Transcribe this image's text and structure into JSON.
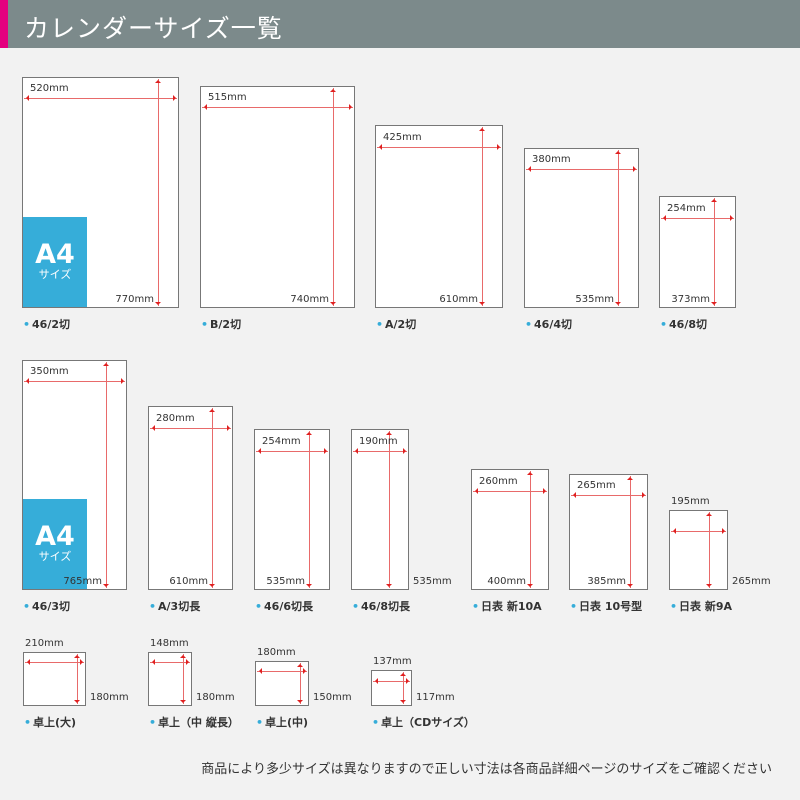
{
  "header": {
    "title": "カレンダーサイズ一覧",
    "bar_color": "#7c8a8b",
    "accent_color": "#e4007f"
  },
  "a4_badge": {
    "big": "A4",
    "small": "サイズ",
    "color": "#36add9"
  },
  "arrow_color": "#e02020",
  "items": [
    {
      "name": "46/2切",
      "width": "520mm",
      "height": "770mm",
      "a4": true
    },
    {
      "name": "B/2切",
      "width": "515mm",
      "height": "740mm"
    },
    {
      "name": "A/2切",
      "width": "425mm",
      "height": "610mm"
    },
    {
      "name": "46/4切",
      "width": "380mm",
      "height": "535mm"
    },
    {
      "name": "46/8切",
      "width": "254mm",
      "height": "373mm"
    },
    {
      "name": "46/3切",
      "width": "350mm",
      "height": "765mm",
      "a4": true
    },
    {
      "name": "A/3切長",
      "width": "280mm",
      "height": "610mm"
    },
    {
      "name": "46/6切長",
      "width": "254mm",
      "height": "535mm"
    },
    {
      "name": "46/8切長",
      "width": "190mm",
      "height": "535mm"
    },
    {
      "name": "日表 新10A",
      "width": "260mm",
      "height": "400mm"
    },
    {
      "name": "日表 10号型",
      "width": "265mm",
      "height": "385mm"
    },
    {
      "name": "日表 新9A",
      "width": "195mm",
      "height": "265mm"
    },
    {
      "name": "卓上(大)",
      "width": "210mm",
      "height": "180mm"
    },
    {
      "name": "卓上（中 縦長）",
      "width": "148mm",
      "height": "180mm"
    },
    {
      "name": "卓上(中)",
      "width": "180mm",
      "height": "150mm"
    },
    {
      "name": "卓上（CDサイズ）",
      "width": "137mm",
      "height": "117mm"
    }
  ],
  "note": "商品により多少サイズは異なりますので正しい寸法は各商品詳細ページのサイズをご確認ください"
}
